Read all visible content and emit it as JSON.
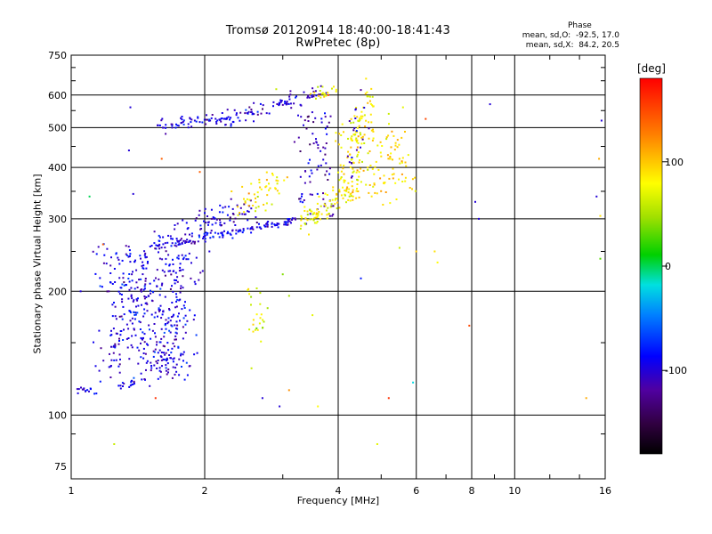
{
  "chart_data": {
    "type": "scatter",
    "title": "Tromsø 20120914 18:40:00-18:41:43",
    "subtitle": "RwPretec (8p)",
    "xlabel": "Frequency [MHz]",
    "ylabel": "Stationary phase Virtual Height [km]",
    "x_scale": "log",
    "y_scale": "log",
    "xlim": [
      1,
      16
    ],
    "ylim": [
      70,
      750
    ],
    "x_ticks": [
      "1",
      "2",
      "4",
      "6",
      "8",
      "10",
      "16"
    ],
    "y_ticks": [
      "75",
      "100",
      "200",
      "300",
      "400",
      "500",
      "600",
      "750"
    ],
    "grid": true,
    "phase_stats": {
      "heading": "Phase",
      "line_O": "mean, sd,O:  -92.5, 17.0",
      "line_X": "mean, sd,X:  84.2, 20.5"
    },
    "colorbar": {
      "label": "[deg]",
      "range": [
        -180,
        180
      ],
      "ticks": [
        "100",
        "0",
        "-100"
      ],
      "tick_values": [
        100,
        0,
        -100
      ]
    },
    "traces": [
      {
        "name": "",
        "x0": 1.03,
        "x1": 1.12,
        "y0": 115,
        "y1": 115,
        "n": 15,
        "sx": 0.015,
        "sy": 0.012,
        "phase": -95
      },
      {
        "name": "",
        "x0": 1.28,
        "x1": 1.45,
        "y0": 118,
        "y1": 120,
        "n": 18,
        "sx": 0.015,
        "sy": 0.012,
        "phase": -95
      },
      {
        "name": "",
        "x0": 1.2,
        "x1": 1.45,
        "y0": 125,
        "y1": 255,
        "n": 180,
        "sx": 0.05,
        "sy": 0.15,
        "phase": -100
      },
      {
        "name": "",
        "x0": 1.48,
        "x1": 1.82,
        "y0": 125,
        "y1": 245,
        "n": 280,
        "sx": 0.05,
        "sy": 0.12,
        "phase": -95
      },
      {
        "name": "",
        "x0": 1.52,
        "x1": 3.2,
        "y0": 255,
        "y1": 298,
        "n": 140,
        "sx": 0.01,
        "sy": 0.012,
        "phase": -95
      },
      {
        "name": "",
        "x0": 1.55,
        "x1": 2.6,
        "y0": 265,
        "y1": 320,
        "n": 90,
        "sx": 0.04,
        "sy": 0.04,
        "phase": -100
      },
      {
        "name": "",
        "x0": 1.6,
        "x1": 2.2,
        "y0": 505,
        "y1": 530,
        "n": 60,
        "sx": 0.02,
        "sy": 0.02,
        "phase": -95
      },
      {
        "name": "",
        "x0": 2.2,
        "x1": 3.7,
        "y0": 520,
        "y1": 615,
        "n": 90,
        "sx": 0.02,
        "sy": 0.02,
        "phase": -100
      },
      {
        "name": "",
        "x0": 3.2,
        "x1": 3.9,
        "y0": 310,
        "y1": 560,
        "n": 80,
        "sx": 0.02,
        "sy": 0.08,
        "phase": -110
      },
      {
        "name": "",
        "x0": 2.4,
        "x1": 3.0,
        "y0": 320,
        "y1": 380,
        "n": 50,
        "sx": 0.03,
        "sy": 0.05,
        "phase": 85
      },
      {
        "name": "",
        "x0": 3.3,
        "x1": 4.5,
        "y0": 292,
        "y1": 360,
        "n": 90,
        "sx": 0.02,
        "sy": 0.04,
        "phase": 80
      },
      {
        "name": "",
        "x0": 4.0,
        "x1": 5.7,
        "y0": 340,
        "y1": 500,
        "n": 150,
        "sx": 0.04,
        "sy": 0.09,
        "phase": 90
      },
      {
        "name": "",
        "x0": 4.3,
        "x1": 4.7,
        "y0": 420,
        "y1": 620,
        "n": 60,
        "sx": 0.02,
        "sy": 0.05,
        "phase": 85
      },
      {
        "name": "",
        "x0": 3.5,
        "x1": 4.0,
        "y0": 590,
        "y1": 630,
        "n": 20,
        "sx": 0.02,
        "sy": 0.02,
        "phase": 75
      },
      {
        "name": "",
        "x0": 2.5,
        "x1": 2.7,
        "y0": 150,
        "y1": 200,
        "n": 25,
        "sx": 0.02,
        "sy": 0.08,
        "phase": 70
      },
      {
        "name": "",
        "x0": 4.3,
        "x1": 4.6,
        "y0": 400,
        "y1": 610,
        "n": 20,
        "sx": 0.02,
        "sy": 0.06,
        "phase": -110
      }
    ],
    "isolated_points": [
      [
        1.36,
        560,
        -100
      ],
      [
        1.35,
        440,
        -100
      ],
      [
        1.38,
        345,
        -100
      ],
      [
        1.1,
        340,
        0
      ],
      [
        1.05,
        200,
        -100
      ],
      [
        1.25,
        85,
        60
      ],
      [
        1.18,
        260,
        140
      ],
      [
        1.55,
        110,
        160
      ],
      [
        1.6,
        420,
        140
      ],
      [
        1.95,
        390,
        140
      ],
      [
        2.05,
        250,
        -100
      ],
      [
        2.55,
        130,
        60
      ],
      [
        2.7,
        110,
        -100
      ],
      [
        2.95,
        105,
        -100
      ],
      [
        3.1,
        115,
        120
      ],
      [
        3.0,
        220,
        40
      ],
      [
        3.1,
        195,
        50
      ],
      [
        2.9,
        620,
        60
      ],
      [
        3.5,
        175,
        70
      ],
      [
        3.6,
        105,
        80
      ],
      [
        4.5,
        215,
        -80
      ],
      [
        4.9,
        85,
        70
      ],
      [
        5.2,
        110,
        160
      ],
      [
        5.9,
        120,
        -20
      ],
      [
        6.3,
        525,
        150
      ],
      [
        6.6,
        250,
        90
      ],
      [
        6.7,
        235,
        80
      ],
      [
        7.9,
        165,
        150
      ],
      [
        8.15,
        330,
        -100
      ],
      [
        8.3,
        300,
        -100
      ],
      [
        8.8,
        570,
        -100
      ],
      [
        14.5,
        110,
        110
      ],
      [
        15.3,
        340,
        -100
      ],
      [
        15.6,
        305,
        90
      ],
      [
        15.7,
        520,
        -100
      ],
      [
        15.5,
        420,
        110
      ],
      [
        15.6,
        240,
        30
      ],
      [
        6.0,
        250,
        100
      ],
      [
        5.5,
        255,
        60
      ],
      [
        3.8,
        600,
        150
      ],
      [
        5.6,
        560,
        70
      ],
      [
        5.2,
        540,
        60
      ],
      [
        2.3,
        350,
        95
      ],
      [
        2.1,
        300,
        -100
      ],
      [
        1.9,
        520,
        -100
      ]
    ]
  }
}
